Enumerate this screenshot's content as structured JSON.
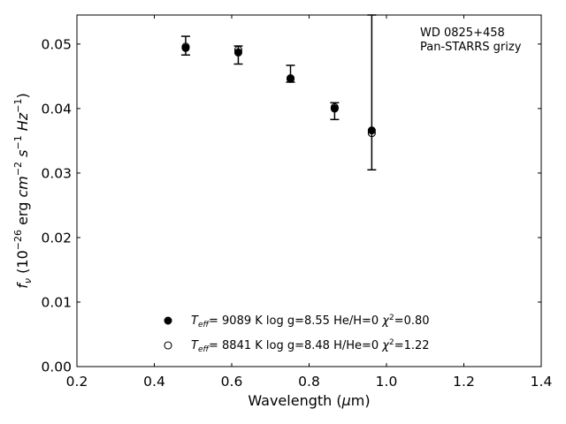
{
  "chart_data": {
    "type": "scatter",
    "title": "",
    "xlabel": "Wavelength (μm)",
    "ylabel": "f_ν (10^-26 erg cm^-2 s^-1 Hz^-1)",
    "xlim": [
      0.2,
      1.4
    ],
    "ylim": [
      0.0,
      0.0545
    ],
    "xticks": [
      "0.2",
      "0.4",
      "0.6",
      "0.8",
      "1.0",
      "1.2",
      "1.4"
    ],
    "yticks": [
      "0.00",
      "0.01",
      "0.02",
      "0.03",
      "0.04",
      "0.05"
    ],
    "grid": false,
    "annotation": {
      "line1": "WD 0825+458",
      "line2": "Pan-STARRS grizy"
    },
    "observed": {
      "x": [
        0.481,
        0.617,
        0.752,
        0.866,
        0.962
      ],
      "y": [
        0.0497,
        0.049,
        0.0448,
        0.0402,
        0.0364
      ],
      "yerr_low": [
        0.0483,
        0.0469,
        0.0441,
        0.0383,
        0.0305
      ],
      "yerr_high": [
        0.0512,
        0.0497,
        0.0467,
        0.0409,
        0.0545
      ]
    },
    "series": [
      {
        "name": "Teff= 9089 K log g=8.55 He/H=0 χ²=0.80",
        "marker": "filled-circle",
        "x": [
          0.481,
          0.617,
          0.752,
          0.866,
          0.962
        ],
        "y": [
          0.0494,
          0.0487,
          0.0447,
          0.04,
          0.0366
        ]
      },
      {
        "name": "Teff= 8841 K log g=8.48 H/He=0 χ²=1.22",
        "marker": "open-circle",
        "x": [
          0.481,
          0.617,
          0.752,
          0.866,
          0.962
        ],
        "y": [
          0.0496,
          0.0491,
          0.0446,
          0.0402,
          0.0362
        ]
      }
    ],
    "legend_placement": "lower-center"
  }
}
